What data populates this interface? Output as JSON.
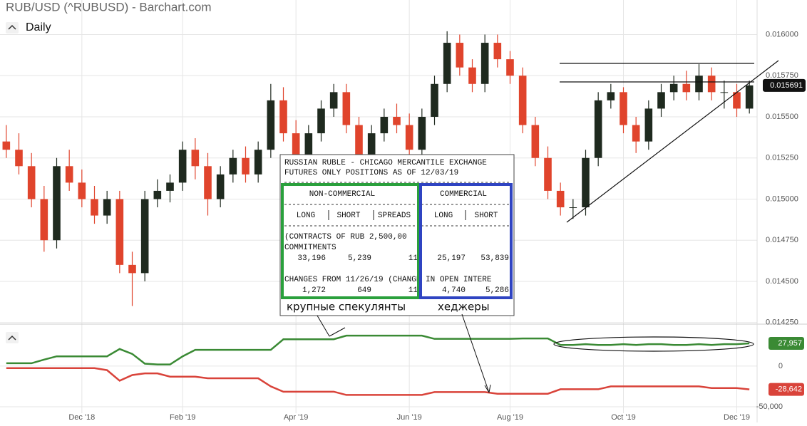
{
  "chart_data": {
    "type": "candlestick",
    "title": "RUB/USD (^RUBUSD) - Barchart.com",
    "interval": "Daily",
    "categories": [
      null,
      null,
      null,
      null,
      null,
      null,
      "Dec '18",
      null,
      null,
      null,
      null,
      null,
      null,
      null,
      "Feb '19",
      null,
      null,
      null,
      null,
      null,
      null,
      null,
      null,
      "Apr '19",
      null,
      null,
      null,
      null,
      null,
      null,
      null,
      null,
      "Jun '19",
      null,
      null,
      null,
      null,
      null,
      null,
      null,
      "Aug '19",
      null,
      null,
      null,
      null,
      null,
      null,
      null,
      null,
      "Oct '19",
      null,
      null,
      null,
      null,
      null,
      null,
      null,
      null,
      "Dec '19",
      null
    ],
    "open": [
      0.01535,
      0.0153,
      0.0152,
      0.015,
      0.01475,
      0.0152,
      0.0151,
      0.015,
      0.0149,
      0.015,
      0.0146,
      0.01455,
      0.015,
      0.01505,
      0.0151,
      0.0153,
      0.0152,
      0.015,
      0.01515,
      0.01525,
      0.01515,
      0.0153,
      0.0156,
      0.0154,
      0.0152,
      0.0154,
      0.01555,
      0.01565,
      0.01545,
      0.01525,
      0.0154,
      0.0155,
      0.01545,
      0.0153,
      0.0155,
      0.0157,
      0.01595,
      0.0158,
      0.0157,
      0.01595,
      0.01585,
      0.01575,
      0.01545,
      0.01525,
      0.01505,
      0.01495,
      0.01495,
      0.01525,
      0.0156,
      0.01565,
      0.01545,
      0.01535,
      0.01555,
      0.01565,
      0.0157,
      0.01565,
      0.01575,
      0.01565,
      0.01565,
      0.01555
    ],
    "high": [
      0.01545,
      0.0154,
      0.01528,
      0.01508,
      0.01525,
      0.0153,
      0.01518,
      0.01508,
      0.01505,
      0.01505,
      0.01468,
      0.01505,
      0.01512,
      0.01515,
      0.01535,
      0.01537,
      0.01528,
      0.0152,
      0.0153,
      0.01532,
      0.01535,
      0.0157,
      0.01568,
      0.01548,
      0.01545,
      0.0156,
      0.0157,
      0.0157,
      0.0155,
      0.01545,
      0.01555,
      0.01558,
      0.01552,
      0.01555,
      0.01575,
      0.01602,
      0.016,
      0.01585,
      0.016,
      0.016,
      0.0159,
      0.0158,
      0.0155,
      0.01532,
      0.0151,
      0.015,
      0.0153,
      0.01565,
      0.0157,
      0.01568,
      0.0155,
      0.0156,
      0.0157,
      0.01575,
      0.01578,
      0.01582,
      0.0158,
      0.01572,
      0.0157,
      0.01572
    ],
    "low": [
      0.01525,
      0.01515,
      0.01495,
      0.01468,
      0.0147,
      0.01505,
      0.01495,
      0.01485,
      0.01485,
      0.01455,
      0.01435,
      0.0145,
      0.01495,
      0.01498,
      0.01505,
      0.01512,
      0.0149,
      0.01495,
      0.0151,
      0.0151,
      0.0151,
      0.01525,
      0.01535,
      0.01515,
      0.01515,
      0.01535,
      0.0155,
      0.0154,
      0.0152,
      0.01522,
      0.01535,
      0.0154,
      0.01525,
      0.01525,
      0.01545,
      0.01565,
      0.01575,
      0.01565,
      0.01565,
      0.0158,
      0.0157,
      0.0154,
      0.0152,
      0.015,
      0.0149,
      0.01488,
      0.0149,
      0.0152,
      0.01555,
      0.0154,
      0.01528,
      0.0153,
      0.0155,
      0.0156,
      0.0156,
      0.0156,
      0.0156,
      0.01555,
      0.0155,
      0.01552
    ],
    "close": [
      0.0153,
      0.0152,
      0.015,
      0.01475,
      0.0152,
      0.0151,
      0.015,
      0.0149,
      0.015,
      0.0146,
      0.01455,
      0.015,
      0.01505,
      0.0151,
      0.0153,
      0.0152,
      0.015,
      0.01515,
      0.01525,
      0.01515,
      0.0153,
      0.0156,
      0.0154,
      0.0152,
      0.0154,
      0.01555,
      0.01565,
      0.01545,
      0.01525,
      0.0154,
      0.0155,
      0.01545,
      0.0153,
      0.0155,
      0.0157,
      0.01595,
      0.0158,
      0.0157,
      0.01595,
      0.01585,
      0.01575,
      0.01545,
      0.01525,
      0.01505,
      0.01495,
      0.01495,
      0.01525,
      0.0156,
      0.01565,
      0.01545,
      0.01535,
      0.01555,
      0.01565,
      0.0157,
      0.01565,
      0.01575,
      0.01565,
      0.01565,
      0.01555,
      0.015691
    ],
    "up_color": "#1f2a1f",
    "down_color": "#e0442c",
    "ylim": [
      0.01424,
      0.01621
    ],
    "yticks": [
      {
        "value": 0.01425,
        "label": "0.014250"
      },
      {
        "value": 0.0145,
        "label": "0.014500"
      },
      {
        "value": 0.01475,
        "label": "0.014750"
      },
      {
        "value": 0.015,
        "label": "0.015000"
      },
      {
        "value": 0.01525,
        "label": "0.015250"
      },
      {
        "value": 0.0155,
        "label": "0.015500"
      },
      {
        "value": 0.01575,
        "label": "0.015750"
      },
      {
        "value": 0.016,
        "label": "0.016000"
      }
    ],
    "grid": true,
    "last_price": 0.015691,
    "lower_panel": {
      "type": "line",
      "ylim": [
        -66700,
        49000
      ],
      "yticks": [
        0,
        {
          "value": -50000,
          "label": "-50,000"
        }
      ],
      "series": [
        {
          "color": "#3a8a34",
          "values": [
            3500,
            3500,
            3500,
            8000,
            12000,
            12000,
            12000,
            12000,
            12000,
            21000,
            15000,
            3000,
            2000,
            2000,
            12000,
            20000,
            20000,
            20000,
            20000,
            20000,
            20000,
            20000,
            33000,
            33000,
            33000,
            33000,
            33000,
            37500,
            37500,
            37500,
            37500,
            37500,
            37500,
            37500,
            33500,
            33500,
            33500,
            33500,
            33500,
            33500,
            33500,
            34000,
            34000,
            34000,
            26000,
            26000,
            27000,
            26000,
            26000,
            27000,
            26000,
            27000,
            27000,
            26000,
            26000,
            27000,
            26000,
            27000,
            27000,
            27957
          ],
          "last_label": "27,957"
        },
        {
          "color": "#d9433a",
          "values": [
            -2500,
            -2500,
            -2500,
            -2500,
            -2500,
            -2500,
            -2500,
            -2500,
            -5000,
            -18000,
            -11000,
            -9000,
            -9000,
            -13000,
            -13000,
            -13000,
            -15000,
            -15000,
            -15000,
            -15000,
            -15000,
            -25000,
            -31500,
            -31500,
            -31500,
            -31500,
            -31500,
            -35500,
            -35500,
            -35500,
            -35500,
            -35500,
            -35500,
            -35500,
            -32000,
            -32000,
            -32000,
            -32000,
            -32000,
            -34000,
            -34000,
            -34000,
            -34000,
            -34000,
            -28500,
            -28500,
            -28500,
            -28500,
            -25000,
            -25000,
            -25000,
            -25000,
            -25000,
            -25000,
            -25000,
            -25000,
            -27000,
            -27000,
            -27000,
            -28642
          ],
          "last_label": "-28,642"
        }
      ]
    },
    "annotations": {
      "cot_title": "RUSSIAN RUBLE - CHICAGO MERCANTILE EXCHANGE",
      "cot_subtitle": "FUTURES ONLY POSITIONS AS OF 12/03/19",
      "groups": [
        "NON-COMMERCIAL",
        "COMMERCIAL"
      ],
      "columns": [
        "LONG",
        "SHORT",
        "SPREADS",
        "LONG",
        "SHORT"
      ],
      "contracts": "(CONTRACTS OF RUB 2,500,00",
      "commitments_label": "COMMITMENTS",
      "commitments": [
        "33,196",
        "5,239",
        "11",
        "25,197",
        "53,839"
      ],
      "changes_label": "CHANGES FROM 11/26/19 (CHANGE IN OPEN INTERE",
      "changes": [
        "1,272",
        "649",
        "11",
        "4,740",
        "5,286"
      ],
      "speculators_label": "крупные спекулянты",
      "hedgers_label": "хеджеры"
    }
  }
}
